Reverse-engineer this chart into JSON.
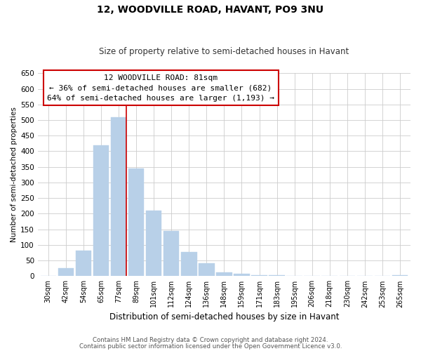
{
  "title": "12, WOODVILLE ROAD, HAVANT, PO9 3NU",
  "subtitle": "Size of property relative to semi-detached houses in Havant",
  "xlabel": "Distribution of semi-detached houses by size in Havant",
  "ylabel": "Number of semi-detached properties",
  "categories": [
    "30sqm",
    "42sqm",
    "54sqm",
    "65sqm",
    "77sqm",
    "89sqm",
    "101sqm",
    "112sqm",
    "124sqm",
    "136sqm",
    "148sqm",
    "159sqm",
    "171sqm",
    "183sqm",
    "195sqm",
    "206sqm",
    "218sqm",
    "230sqm",
    "242sqm",
    "253sqm",
    "265sqm"
  ],
  "values": [
    0,
    25,
    82,
    420,
    510,
    345,
    210,
    145,
    78,
    42,
    12,
    7,
    3,
    2,
    1,
    0,
    0,
    0,
    0,
    0,
    2
  ],
  "bar_color": "#b8d0e8",
  "marker_line_color": "#cc0000",
  "ylim": [
    0,
    650
  ],
  "yticks": [
    0,
    50,
    100,
    150,
    200,
    250,
    300,
    350,
    400,
    450,
    500,
    550,
    600,
    650
  ],
  "annotation_title": "12 WOODVILLE ROAD: 81sqm",
  "annotation_line1": "← 36% of semi-detached houses are smaller (682)",
  "annotation_line2": "64% of semi-detached houses are larger (1,193) →",
  "annotation_box_color": "#ffffff",
  "annotation_box_edge": "#cc0000",
  "footer1": "Contains HM Land Registry data © Crown copyright and database right 2024.",
  "footer2": "Contains public sector information licensed under the Open Government Licence v3.0.",
  "background_color": "#ffffff",
  "grid_color": "#cccccc"
}
